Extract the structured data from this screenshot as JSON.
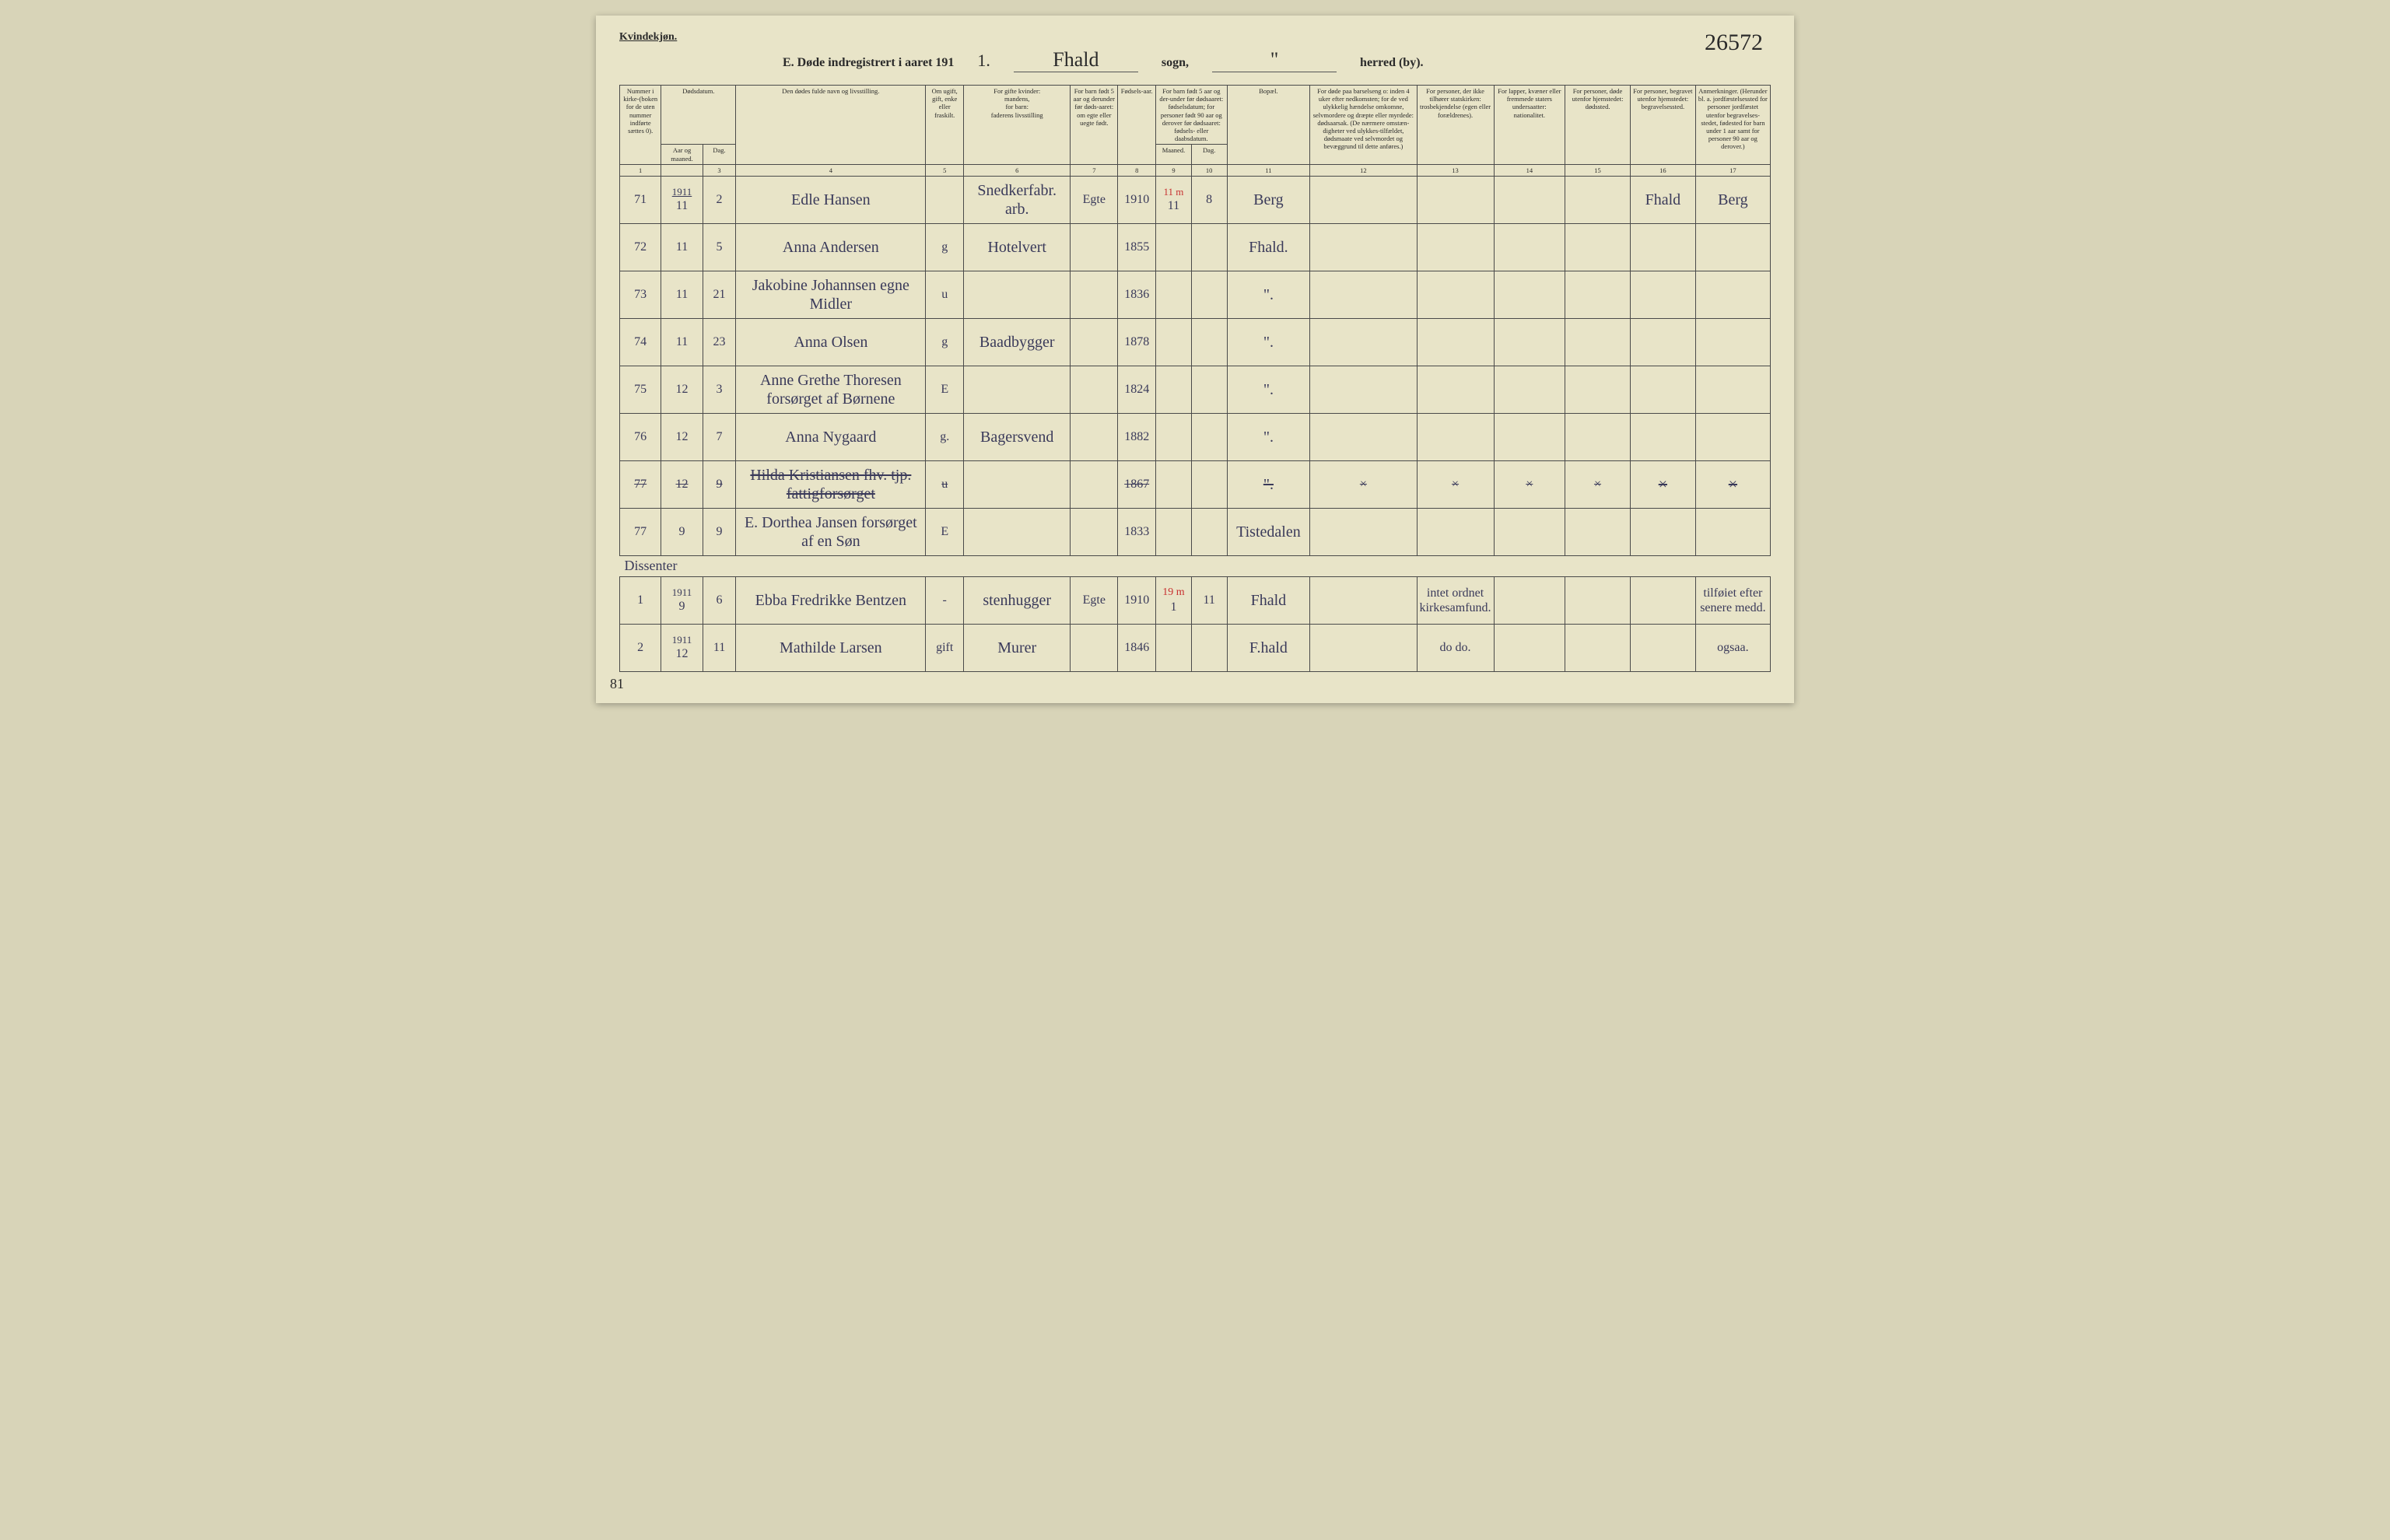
{
  "header": {
    "gender_label": "Kvindekjøn.",
    "title_prefix": "E.  Døde indregistrert i aaret 191",
    "year_suffix": "1.",
    "sogn_script": "Fhald",
    "sogn_label": "sogn,",
    "herred_script": "\"",
    "herred_label": "herred (by).",
    "page_number": "26572"
  },
  "columns": {
    "h1": "Nummer i kirke-(boken for de uten nummer indførte sættes 0).",
    "h2_top": "Dødsdatum.",
    "h2a": "Aar og maaned.",
    "h2b": "Dag.",
    "h4": "Den dødes fulde navn og livsstilling.",
    "h5": "Om ugift, gift, enke eller fraskilt.",
    "h6_top": "For gifte kvinder:",
    "h6_mid": "mandens,",
    "h6_mid2": "for barn:",
    "h6_bot": "faderens livsstilling",
    "h7": "For barn født 5 aar og derunder før døds-aaret: om egte eller uegte født.",
    "h8": "Fødsels-aar.",
    "h9_top": "For barn født 5 aar og der-under før dødsaaret: fødselsdatum; for personer født 90 aar og derover før dødsaaret: fødsels- eller daabsdatum.",
    "h9a": "Maaned.",
    "h9b": "Dag.",
    "h11": "Bopæl.",
    "h12": "For døde paa barselseng o: inden 4 uker efter nedkomsten; for de ved ulykkelig hændelse omkomne, selvmordere og dræpte eller myrdede: dødsaarsak. (De nærmere omstæn-digheter ved ulykkes-tilfældet, dødsmaate ved selvmordet og bevæggrund til dette anføres.)",
    "h13": "For personer, der ikke tilhører statskirken: trosbekjendelse (egen eller forældrenes).",
    "h14": "For lapper, kvæner eller fremmede staters undersaatter: nationalitet.",
    "h15": "For personer, døde utenfor hjemstedet: dødssted.",
    "h16": "For personer, begravet utenfor hjemstedet: begravelsessted.",
    "h17": "Anmerkninger. (Herunder bl. a. jordfæstelsessted for personer jordfæstet utenfor begravelses-stedet, fødested for barn under 1 aar samt for personer 90 aar og derover.)",
    "nums": [
      "1",
      "",
      "3",
      "4",
      "5",
      "6",
      "7",
      "8",
      "9",
      "10",
      "11",
      "12",
      "13",
      "14",
      "15",
      "16",
      "17"
    ]
  },
  "year_insert": "1911",
  "rows": [
    {
      "n": "71",
      "m": "11",
      "d": "2",
      "name": "Edle Hansen",
      "stat": "",
      "occ": "Snedkerfabr. arb.",
      "leg": "Egte",
      "yr": "1910",
      "bm": "11",
      "bd": "8",
      "bm_note": "11 m",
      "res": "Berg",
      "c12": "",
      "c13": "",
      "c14": "",
      "c15": "",
      "c16": "Fhald",
      "c17": "Berg"
    },
    {
      "n": "72",
      "m": "11",
      "d": "5",
      "name": "Anna Andersen",
      "stat": "g",
      "occ": "Hotelvert",
      "leg": "",
      "yr": "1855",
      "bm": "",
      "bd": "",
      "res": "Fhald.",
      "c12": "",
      "c13": "",
      "c14": "",
      "c15": "",
      "c16": "",
      "c17": ""
    },
    {
      "n": "73",
      "m": "11",
      "d": "21",
      "name": "Jakobine Johannsen egne Midler",
      "stat": "u",
      "occ": "",
      "leg": "",
      "yr": "1836",
      "bm": "",
      "bd": "",
      "res": "\".",
      "c12": "",
      "c13": "",
      "c14": "",
      "c15": "",
      "c16": "",
      "c17": ""
    },
    {
      "n": "74",
      "m": "11",
      "d": "23",
      "name": "Anna Olsen",
      "stat": "g",
      "occ": "Baadbygger",
      "leg": "",
      "yr": "1878",
      "bm": "",
      "bd": "",
      "res": "\".",
      "c12": "",
      "c13": "",
      "c14": "",
      "c15": "",
      "c16": "",
      "c17": ""
    },
    {
      "n": "75",
      "m": "12",
      "d": "3",
      "name": "Anne Grethe Thoresen forsørget af Børnene",
      "stat": "E",
      "occ": "",
      "leg": "",
      "yr": "1824",
      "bm": "",
      "bd": "",
      "res": "\".",
      "c12": "",
      "c13": "",
      "c14": "",
      "c15": "",
      "c16": "",
      "c17": ""
    },
    {
      "n": "76",
      "m": "12",
      "d": "7",
      "name": "Anna Nygaard",
      "stat": "g.",
      "occ": "Bagersvend",
      "leg": "",
      "yr": "1882",
      "bm": "",
      "bd": "",
      "res": "\".",
      "c12": "",
      "c13": "",
      "c14": "",
      "c15": "",
      "c16": "",
      "c17": ""
    },
    {
      "n": "77",
      "m": "12",
      "d": "9",
      "name": "Hilda Kristiansen fhv. tjp. fattigforsørget",
      "stat": "u",
      "occ": "",
      "leg": "",
      "yr": "1867",
      "bm": "",
      "bd": "",
      "res": "\".",
      "c12": "×",
      "c13": "×",
      "c14": "×",
      "c15": "×",
      "c16": "×",
      "c17": "×",
      "struck": true
    },
    {
      "n": "77",
      "m": "9",
      "d": "9",
      "name": "E. Dorthea Jansen forsørget af en Søn",
      "stat": "E",
      "occ": "",
      "leg": "",
      "yr": "1833",
      "bm": "",
      "bd": "",
      "res": "Tistedalen",
      "c12": "",
      "c13": "",
      "c14": "",
      "c15": "",
      "c16": "",
      "c17": ""
    }
  ],
  "section_label": "Dissenter",
  "rows2": [
    {
      "n": "1",
      "y": "1911",
      "m": "9",
      "d": "6",
      "name": "Ebba Fredrikke Bentzen",
      "stat": "-",
      "occ": "stenhugger",
      "leg": "Egte",
      "yr": "1910",
      "bm": "1",
      "bd": "11",
      "bm_note": "19 m",
      "res": "Fhald",
      "c12": "",
      "c13": "intet ordnet kirkesamfund.",
      "c14": "",
      "c15": "",
      "c16": "",
      "c17": "tilføiet efter senere medd."
    },
    {
      "n": "2",
      "y": "1911",
      "m": "12",
      "d": "11",
      "name": "Mathilde Larsen",
      "stat": "gift",
      "occ": "Murer",
      "leg": "",
      "yr": "1846",
      "bm": "",
      "bd": "",
      "res": "F.hald",
      "c12": "",
      "c13": "do   do.",
      "c14": "",
      "c15": "",
      "c16": "",
      "c17": "ogsaa."
    }
  ],
  "bottom_page": "81"
}
